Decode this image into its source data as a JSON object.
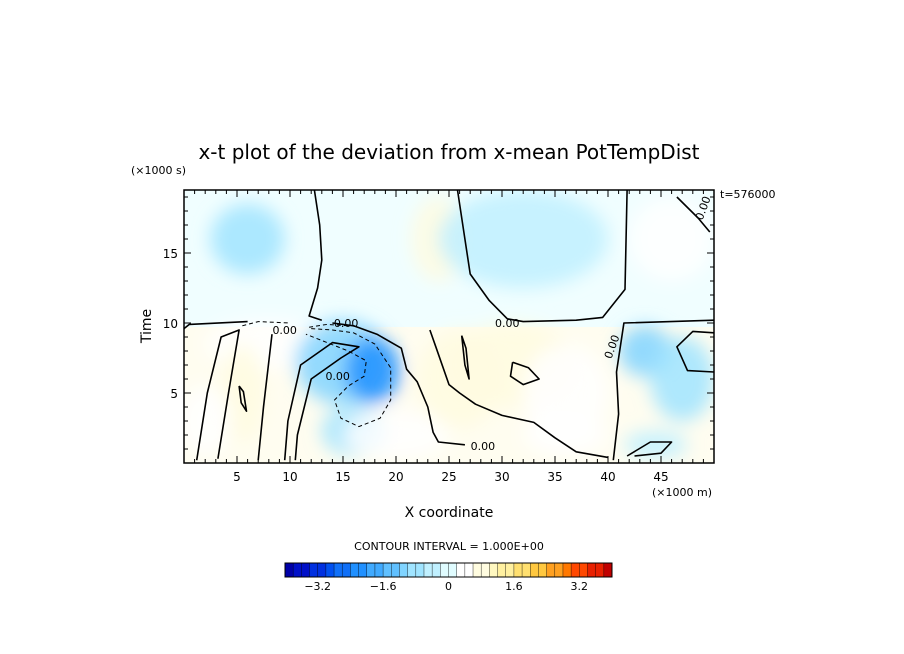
{
  "chart_data": {
    "type": "heatmap",
    "title": "x-t plot of the deviation from x-mean PotTempDist",
    "xlabel": "X coordinate",
    "ylabel": "Time",
    "x_unit_label": "(×1000 m)",
    "y_unit_label": "(×1000 s)",
    "time_stamp": "t=576000",
    "xlim": [
      0,
      50
    ],
    "ylim": [
      0,
      19.5
    ],
    "x_ticks": [
      5,
      10,
      15,
      20,
      25,
      30,
      35,
      40,
      45
    ],
    "x_tick_labels": [
      "5",
      "10",
      "15",
      "20",
      "25",
      "30",
      "35",
      "40",
      "45"
    ],
    "y_ticks": [
      5,
      10,
      15
    ],
    "y_tick_labels": [
      "5",
      "10",
      "15"
    ],
    "contour_labels": [
      {
        "text": "0.00",
        "x": 9.5,
        "y": 9.5
      },
      {
        "text": "0.00",
        "x": 15.3,
        "y": 10.0
      },
      {
        "text": "0.00",
        "x": 30.5,
        "y": 10.0
      },
      {
        "text": "0.00",
        "x": 28.2,
        "y": 1.2
      },
      {
        "text": "0.00",
        "x": 49.3,
        "y": 18.4
      },
      {
        "text": "0.00",
        "x": 40.7,
        "y": 8.5
      },
      {
        "text": "0.00",
        "x": 14.5,
        "y": 6.2
      }
    ],
    "anomaly_regions": [
      {
        "cx": 6,
        "cy": 16,
        "rx": 3.5,
        "ry": 2.5,
        "value": -0.8
      },
      {
        "cx": 24,
        "cy": 16,
        "rx": 2.5,
        "ry": 3,
        "value": 0.7
      },
      {
        "cx": 8,
        "cy": 8.5,
        "rx": 6,
        "ry": 1.8,
        "value": 0.5
      },
      {
        "cx": 5.5,
        "cy": 5,
        "rx": 2,
        "ry": 3.5,
        "value": 0.6
      },
      {
        "cx": 2,
        "cy": 3,
        "rx": 2.5,
        "ry": 2.5,
        "value": 0.3
      },
      {
        "cx": 15,
        "cy": 7.2,
        "rx": 4.5,
        "ry": 3,
        "value": -1.2
      },
      {
        "cx": 17.8,
        "cy": 6.6,
        "rx": 2.6,
        "ry": 2.4,
        "value": -2.2
      },
      {
        "cx": 16,
        "cy": 2.3,
        "rx": 3,
        "ry": 1.8,
        "value": -0.9
      },
      {
        "cx": 26,
        "cy": 6,
        "rx": 4,
        "ry": 3.5,
        "value": 0.8
      },
      {
        "cx": 31,
        "cy": 7,
        "rx": 6,
        "ry": 3,
        "value": 0.6
      },
      {
        "cx": 36,
        "cy": 5,
        "rx": 4,
        "ry": 3.5,
        "value": 0.5
      },
      {
        "cx": 20,
        "cy": 2,
        "rx": 5,
        "ry": 1.8,
        "value": 0.4
      },
      {
        "cx": 36,
        "cy": 2,
        "rx": 4,
        "ry": 1.5,
        "value": 0.4
      },
      {
        "cx": 43.5,
        "cy": 8,
        "rx": 2.5,
        "ry": 1.8,
        "value": -1.0
      },
      {
        "cx": 47,
        "cy": 6,
        "rx": 3,
        "ry": 3,
        "value": -0.7
      },
      {
        "cx": 44.5,
        "cy": 1.3,
        "rx": 3,
        "ry": 1,
        "value": -0.5
      },
      {
        "cx": 32,
        "cy": 16,
        "rx": 8,
        "ry": 3.5,
        "value": -0.25
      },
      {
        "cx": 46,
        "cy": 16,
        "rx": 4,
        "ry": 3,
        "value": 0.2
      }
    ],
    "contours_solid": [
      [
        [
          12.3,
          19.5
        ],
        [
          12.8,
          17
        ],
        [
          13,
          14.5
        ],
        [
          12.6,
          12.5
        ],
        [
          11.8,
          10.5
        ],
        [
          13,
          10.2
        ]
      ],
      [
        [
          25.8,
          19.5
        ],
        [
          26.5,
          16
        ],
        [
          27,
          13.5
        ],
        [
          28.8,
          11.6
        ],
        [
          30.5,
          10.3
        ],
        [
          32,
          10.1
        ],
        [
          37,
          10.2
        ],
        [
          39.5,
          10.4
        ],
        [
          41.6,
          12.4
        ],
        [
          41.8,
          19.5
        ]
      ],
      [
        [
          0,
          9.6
        ],
        [
          0.5,
          9.9
        ],
        [
          6,
          10.1
        ]
      ],
      [
        [
          1.2,
          0.2
        ],
        [
          2.2,
          5
        ],
        [
          3.5,
          9
        ],
        [
          5.2,
          9.5
        ],
        [
          4.2,
          5
        ],
        [
          3.2,
          0.3
        ]
      ],
      [
        [
          7,
          0.2
        ],
        [
          7.5,
          4
        ],
        [
          8.3,
          9.2
        ]
      ],
      [
        [
          9.5,
          0.2
        ],
        [
          9.8,
          3
        ],
        [
          11,
          7
        ],
        [
          14,
          8.6
        ],
        [
          16.5,
          8.3
        ],
        [
          14.8,
          7.5
        ],
        [
          12,
          6
        ],
        [
          10.7,
          2
        ],
        [
          10.5,
          0.2
        ]
      ],
      [
        [
          14,
          10
        ],
        [
          16,
          9.8
        ],
        [
          18.2,
          9.2
        ],
        [
          20.5,
          8.2
        ],
        [
          21,
          6.7
        ],
        [
          22,
          5.8
        ],
        [
          23,
          4
        ],
        [
          23.5,
          2.2
        ],
        [
          24,
          1.5
        ],
        [
          26.5,
          1.3
        ]
      ],
      [
        [
          23.2,
          9.5
        ],
        [
          23.8,
          8.2
        ],
        [
          25,
          5.6
        ],
        [
          26,
          5
        ],
        [
          27.5,
          4.2
        ],
        [
          30,
          3.4
        ],
        [
          33,
          2.9
        ],
        [
          35,
          1.8
        ],
        [
          37,
          0.8
        ],
        [
          40,
          0.4
        ]
      ],
      [
        [
          40.5,
          0.2
        ],
        [
          41,
          3.5
        ],
        [
          40.8,
          6.5
        ],
        [
          41.5,
          10
        ],
        [
          50,
          10.2
        ]
      ],
      [
        [
          50,
          6.5
        ],
        [
          47.5,
          6.6
        ],
        [
          46.5,
          8.3
        ],
        [
          48,
          9.4
        ],
        [
          50,
          9.3
        ]
      ],
      [
        [
          41.8,
          0.5
        ],
        [
          44,
          1.5
        ],
        [
          46,
          1.5
        ],
        [
          45,
          0.7
        ],
        [
          42.5,
          0.5
        ]
      ],
      [
        [
          31,
          7.2
        ],
        [
          32.5,
          6.8
        ],
        [
          33.5,
          6
        ],
        [
          32,
          5.6
        ],
        [
          30.8,
          6.2
        ],
        [
          31,
          7.2
        ]
      ],
      [
        [
          46.5,
          19
        ],
        [
          48.5,
          17.5
        ],
        [
          49.6,
          16.5
        ]
      ],
      [
        [
          26.2,
          9.1
        ],
        [
          26.6,
          8.2
        ],
        [
          26.9,
          6
        ],
        [
          26.5,
          7
        ],
        [
          26.2,
          9.1
        ]
      ],
      [
        [
          5.2,
          5.5
        ],
        [
          5.6,
          5.1
        ],
        [
          5.9,
          3.7
        ],
        [
          5.4,
          4.3
        ],
        [
          5.2,
          5.5
        ]
      ]
    ],
    "contours_dashed": [
      [
        [
          5.5,
          9.8
        ],
        [
          7,
          10.1
        ],
        [
          10,
          10
        ]
      ],
      [
        [
          12,
          9.6
        ],
        [
          14,
          9.5
        ],
        [
          16,
          9.3
        ],
        [
          18,
          8.5
        ],
        [
          19.5,
          6.8
        ],
        [
          19.5,
          4.5
        ],
        [
          18.5,
          3.2
        ],
        [
          16.5,
          2.6
        ],
        [
          14.8,
          3.2
        ],
        [
          14.2,
          4.5
        ],
        [
          15.5,
          5.5
        ],
        [
          17,
          6.2
        ],
        [
          17.2,
          7.3
        ],
        [
          15.5,
          8
        ],
        [
          13.5,
          8.6
        ],
        [
          11.5,
          9.2
        ]
      ],
      [
        [
          11.8,
          9.7
        ],
        [
          13.5,
          9.9
        ],
        [
          15.5,
          9.8
        ]
      ]
    ],
    "colorbar": {
      "label": "CONTOUR INTERVAL = 1.000E+00",
      "ticks": [
        -3.2,
        -1.6,
        0,
        1.6,
        3.2
      ],
      "tick_labels": [
        "−3.2",
        "−1.6",
        "0",
        "1.6",
        "3.2"
      ],
      "range": [
        -4.0,
        4.0
      ],
      "steps": 40,
      "colors": [
        "#0000a8",
        "#0010c8",
        "#0030e0",
        "#0050f0",
        "#1070f8",
        "#2090ff",
        "#40aaff",
        "#60c0ff",
        "#80d4ff",
        "#a0e4ff",
        "#c0f0ff",
        "#e0fcff",
        "#ffffff",
        "#fffce0",
        "#fff8c0",
        "#fff0a0",
        "#ffe070",
        "#ffc840",
        "#ffa020",
        "#ff7800",
        "#ff4800",
        "#e82000",
        "#c00000"
      ]
    }
  }
}
